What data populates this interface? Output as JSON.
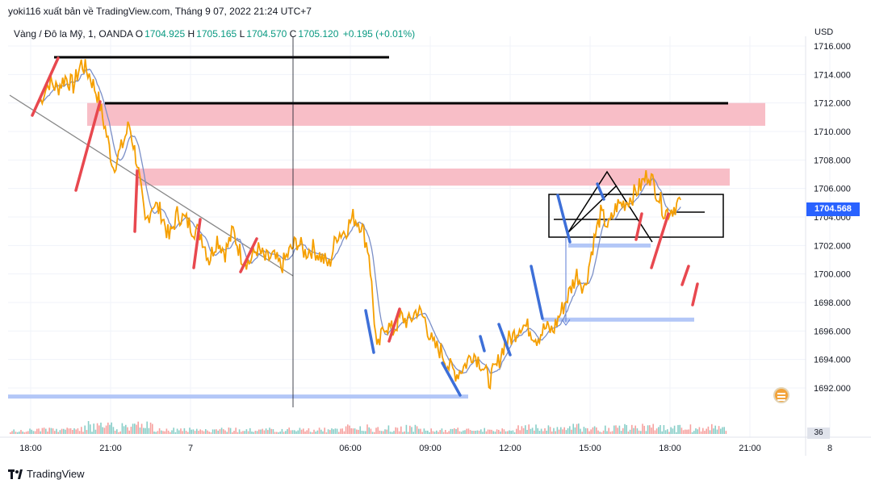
{
  "header": {
    "publisher_line": "yoki116 xuất bản về TradingView.com, Tháng 9 07, 2022 21:24 UTC+7"
  },
  "legend": {
    "symbol": "Vàng / Đô la Mỹ, 1, OANDA",
    "open_label": "O",
    "open": "1704.925",
    "high_label": "H",
    "high": "1705.165",
    "low_label": "L",
    "low": "1704.570",
    "close_label": "C",
    "close": "1705.120",
    "change": "+0.195 (+0.01%)",
    "up_color": "#089981"
  },
  "axis": {
    "currency": "USD",
    "last_price": "1704.568",
    "volume_value": "36"
  },
  "footer": {
    "brand": "TradingView"
  },
  "colors": {
    "price_line": "#f59f00",
    "ma_line": "#7b8fc7",
    "zone_fill": "#f8bbc4",
    "support_line": "#b3c7f7",
    "bull_segment": "#e8484f",
    "bear_segment": "#3d6fd8",
    "last_price_tag": "#2962ff"
  },
  "chart_data": {
    "type": "line",
    "title": "",
    "xlabel": "",
    "ylabel": "",
    "y_ticks": [
      "1716.000",
      "1714.000",
      "1712.000",
      "1710.000",
      "1708.000",
      "1706.000",
      "1704.000",
      "1702.000",
      "1700.000",
      "1698.000",
      "1696.000",
      "1694.000",
      "1692.000"
    ],
    "x_ticks": [
      "18:00",
      "21:00",
      "7",
      "06:00",
      "09:00",
      "12:00",
      "15:00",
      "18:00",
      "21:00",
      "8"
    ],
    "ylim": [
      1691,
      1716.5
    ],
    "grid": true,
    "series": [
      {
        "x_hours": [
          -2.7,
          -2.3,
          -2.0,
          -1.7,
          -1.4,
          -1.1,
          -0.8,
          -0.5,
          -0.2,
          0.1,
          0.4,
          0.7,
          1.0,
          1.3,
          1.6,
          1.9,
          2.2,
          2.5,
          2.8,
          3.1,
          3.4,
          3.7,
          4.0,
          4.3,
          4.6,
          4.9,
          5.2,
          5.5,
          5.8,
          6.1,
          6.4,
          6.7,
          7.0,
          7.3,
          7.6,
          7.9,
          8.2,
          8.5,
          8.8,
          9.1,
          9.4,
          9.7,
          10.0,
          10.3,
          10.6,
          10.9,
          11.2,
          11.5,
          11.8,
          12.1,
          12.4,
          12.7,
          13.0,
          13.3,
          13.6,
          13.9,
          14.2,
          14.5,
          14.8,
          15.1,
          15.4,
          15.7,
          16.0,
          16.3,
          16.6,
          16.9,
          17.2,
          17.5,
          17.8,
          18.1,
          18.4,
          18.7,
          19.0,
          19.3,
          19.6,
          19.9,
          20.2,
          20.5,
          20.8,
          21.1,
          21.4
        ],
        "values": [
          1712.0,
          1713.5,
          1713.0,
          1713.8,
          1713.2,
          1714.8,
          1714.0,
          1712.6,
          1710.2,
          1707.5,
          1708.8,
          1710.5,
          1707.8,
          1703.5,
          1705.0,
          1704.3,
          1702.5,
          1704.2,
          1703.8,
          1703.2,
          1702.8,
          1701.0,
          1702.5,
          1701.5,
          1703.0,
          1701.3,
          1700.8,
          1701.8,
          1701.0,
          1701.2,
          1700.5,
          1701.5,
          1702.3,
          1701.5,
          1701.8,
          1701.2,
          1700.6,
          1702.8,
          1703.0,
          1704.0,
          1703.5,
          1701.5,
          1694.5,
          1696.5,
          1696.0,
          1697.0,
          1696.6,
          1697.5,
          1696.8,
          1695.0,
          1694.6,
          1693.5,
          1693.0,
          1693.6,
          1694.5,
          1693.8,
          1692.5,
          1693.5,
          1695.2,
          1695.6,
          1696.5,
          1696.2,
          1695.5,
          1696.2,
          1696.0,
          1697.3,
          1698.6,
          1700.0,
          1699.0,
          1702.0,
          1704.2,
          1703.3,
          1704.8,
          1705.0,
          1705.5,
          1706.2,
          1707.1,
          1705.8,
          1704.3,
          1704.6,
          1705.2
        ]
      }
    ],
    "zones": [
      {
        "from": 1712.0,
        "to": 1710.4
      },
      {
        "from": 1707.4,
        "to": 1706.2
      }
    ],
    "support_lines": [
      1702.0,
      1696.8,
      1691.4
    ]
  }
}
